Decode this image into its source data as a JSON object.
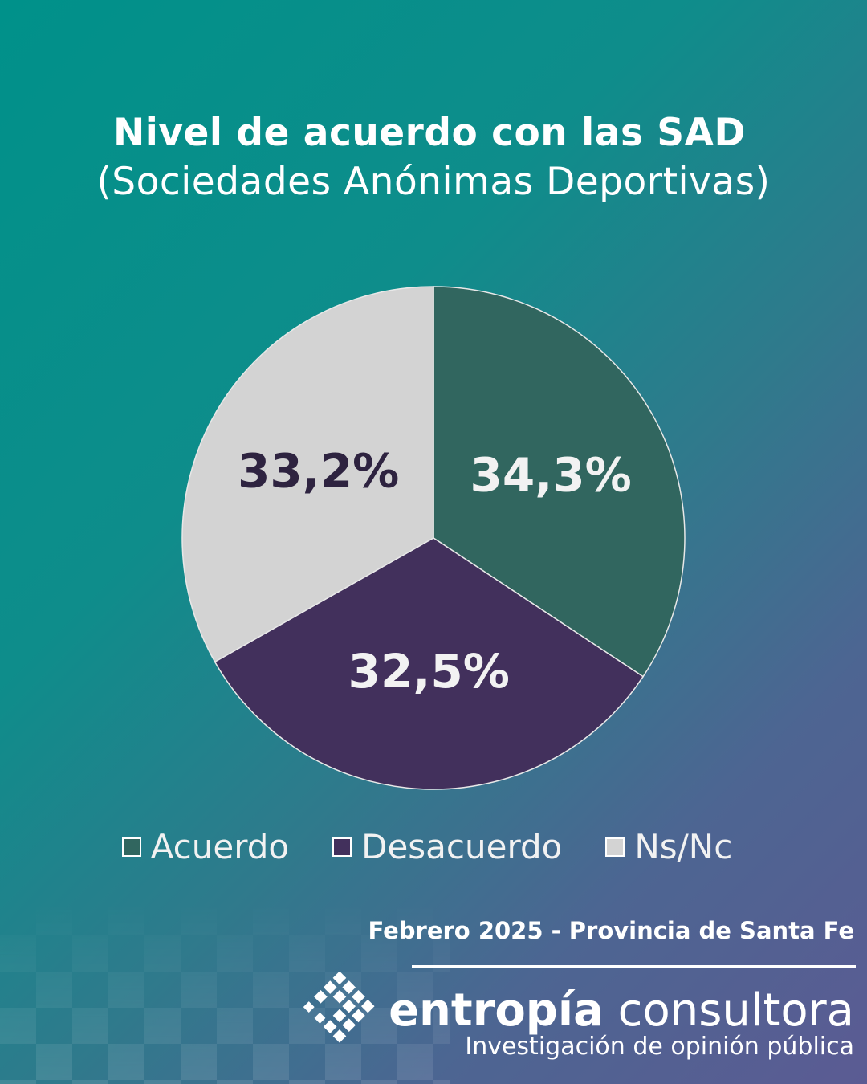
{
  "title": "Nivel de acuerdo con las SAD",
  "subtitle": "(Sociedades Anónimas Deportivas)",
  "chart_data": {
    "type": "pie",
    "title": "Nivel de acuerdo con las SAD (Sociedades Anónimas Deportivas)",
    "categories": [
      "Acuerdo",
      "Desacuerdo",
      "Ns/Nc"
    ],
    "values": [
      34.3,
      32.5,
      33.2
    ],
    "labels": [
      "34,3%",
      "32,5%",
      "33,2%"
    ],
    "colors": [
      "#31665f",
      "#42305c",
      "#d3d3d3"
    ],
    "label_colors": [
      "#f2f2f2",
      "#f2f2f2",
      "#2e2340"
    ],
    "start_angle_deg": 0,
    "direction": "clockwise",
    "legend_position": "bottom"
  },
  "legend": [
    {
      "label": "Acuerdo",
      "color": "#31665f"
    },
    {
      "label": "Desacuerdo",
      "color": "#42305c"
    },
    {
      "label": "Ns/Nc",
      "color": "#d3d3d3"
    }
  ],
  "footer": {
    "date_location": "Febrero 2025 - Provincia de Santa Fe",
    "brand_strong": "entropía",
    "brand_light": "consultora",
    "tagline": "Investigación de opinión pública"
  }
}
